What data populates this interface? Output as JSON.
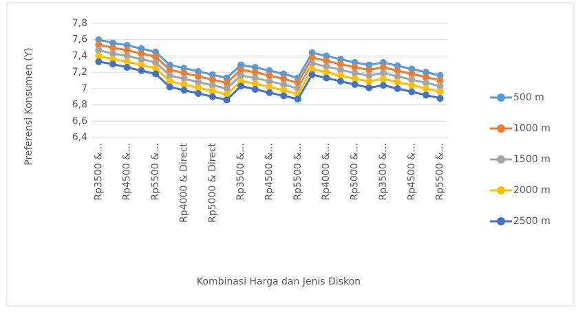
{
  "chart_data": {
    "type": "line",
    "y_label": "Preferensi Konsumen (Y)",
    "x_label": "Kombinasi Harga dan Jenis Diskon",
    "categories": [
      "Rp3500 &…",
      null,
      "Rp4500 &…",
      null,
      "Rp5500 &…",
      null,
      "Rp4000 & Direct",
      null,
      "Rp5000 & Direct",
      null,
      "Rp3500 &…",
      null,
      "Rp4500 &…",
      null,
      "Rp5500 &…",
      null,
      "Rp4000 &…",
      null,
      "Rp5000 &…",
      null,
      "Rp3500 &…",
      null,
      "Rp4500 &…",
      null,
      "Rp5500 &…"
    ],
    "series": [
      {
        "name": "500 m",
        "color": "#5b9bd5",
        "values": [
          7.6,
          7.56,
          7.53,
          7.49,
          7.45,
          7.29,
          7.25,
          7.21,
          7.17,
          7.13,
          7.29,
          7.26,
          7.22,
          7.18,
          7.13,
          7.44,
          7.4,
          7.36,
          7.32,
          7.29,
          7.32,
          7.28,
          7.24,
          7.2,
          7.16
        ]
      },
      {
        "name": "1000 m",
        "color": "#ed7d31",
        "values": [
          7.54,
          7.5,
          7.47,
          7.43,
          7.39,
          7.23,
          7.19,
          7.15,
          7.11,
          7.07,
          7.23,
          7.2,
          7.16,
          7.12,
          7.07,
          7.38,
          7.34,
          7.3,
          7.26,
          7.23,
          7.26,
          7.22,
          7.18,
          7.14,
          7.1
        ]
      },
      {
        "name": "1500 m",
        "color": "#a5a5a5",
        "values": [
          7.47,
          7.43,
          7.4,
          7.36,
          7.32,
          7.16,
          7.12,
          7.08,
          7.04,
          7.0,
          7.16,
          7.13,
          7.09,
          7.05,
          7.0,
          7.31,
          7.27,
          7.23,
          7.19,
          7.16,
          7.19,
          7.15,
          7.11,
          7.07,
          7.03
        ]
      },
      {
        "name": "2000 m",
        "color": "#ffc000",
        "values": [
          7.4,
          7.36,
          7.33,
          7.29,
          7.25,
          7.09,
          7.05,
          7.01,
          6.97,
          6.93,
          7.09,
          7.06,
          7.02,
          6.98,
          6.93,
          7.24,
          7.2,
          7.16,
          7.12,
          7.09,
          7.12,
          7.08,
          7.04,
          7.0,
          6.96
        ]
      },
      {
        "name": "2500 m",
        "color": "#4472c4",
        "values": [
          7.33,
          7.3,
          7.26,
          7.22,
          7.18,
          7.02,
          6.98,
          6.94,
          6.9,
          6.86,
          7.03,
          6.99,
          6.95,
          6.91,
          6.87,
          7.17,
          7.13,
          7.09,
          7.05,
          7.01,
          7.04,
          7.0,
          6.96,
          6.92,
          6.88
        ]
      }
    ],
    "ylim": [
      6.4,
      7.8
    ],
    "yticks": [
      {
        "value": 6.4,
        "label": "6,4"
      },
      {
        "value": 6.6,
        "label": "6,6"
      },
      {
        "value": 6.8,
        "label": "6,8"
      },
      7,
      {
        "value": 7.2,
        "label": "7,2"
      },
      {
        "value": 7.4,
        "label": "7,4"
      },
      {
        "value": 7.6,
        "label": "7,6"
      },
      {
        "value": 7.8,
        "label": "7,8"
      }
    ],
    "grid": true,
    "legend": "right"
  }
}
